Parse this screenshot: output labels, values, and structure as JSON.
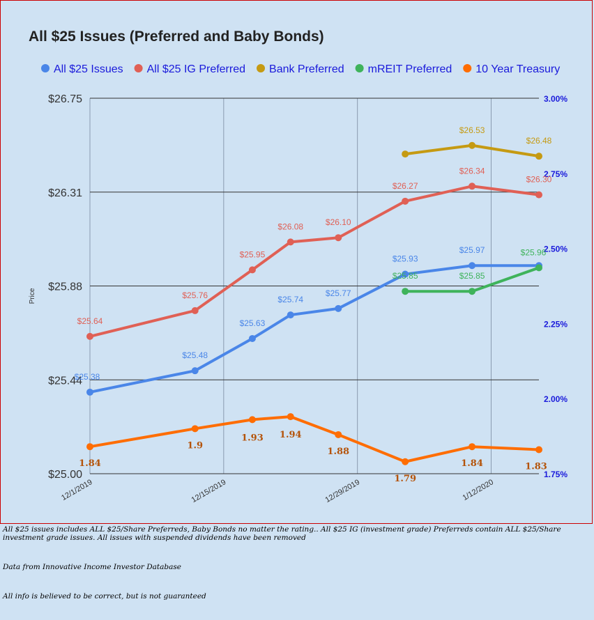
{
  "chart_data": {
    "type": "line",
    "title": "All $25 Issues (Preferred and Baby Bonds)",
    "ylabel": "Price",
    "ylim": [
      25.0,
      26.75
    ],
    "y_ticks": [
      "$25.00",
      "$25.44",
      "$25.88",
      "$26.31",
      "$26.75"
    ],
    "y2lim": [
      1.75,
      3.0
    ],
    "y2_ticks": [
      "1.75%",
      "2.00%",
      "2.25%",
      "2.50%",
      "2.75%",
      "3.00%"
    ],
    "x_ticks": [
      "12/1/2019",
      "12/15/2019",
      "12/29/2019",
      "1/12/2020"
    ],
    "x_tick_positions": [
      0,
      14,
      28,
      42
    ],
    "x_range": [
      0,
      47
    ],
    "legend_position": "top",
    "gridlines": true,
    "series": [
      {
        "name": "All $25 Issues",
        "color": "#4a86e8",
        "axis": "left",
        "x": [
          0,
          11,
          17,
          21,
          26,
          33,
          40,
          47
        ],
        "y": [
          25.38,
          25.48,
          25.63,
          25.74,
          25.77,
          25.93,
          25.97,
          25.97
        ],
        "labels": [
          "$25.38",
          "$25.48",
          "$25.63",
          "$25.74",
          "$25.77",
          "$25.93",
          "$25.97",
          ""
        ]
      },
      {
        "name": "All $25 IG Preferred",
        "color": "#e06055",
        "axis": "left",
        "x": [
          0,
          11,
          17,
          21,
          26,
          33,
          40,
          47
        ],
        "y": [
          25.64,
          25.76,
          25.95,
          26.08,
          26.1,
          26.27,
          26.34,
          26.3
        ],
        "labels": [
          "$25.64",
          "$25.76",
          "$25.95",
          "$26.08",
          "$26.10",
          "$26.27",
          "$26.34",
          "$26.30"
        ]
      },
      {
        "name": "Bank Preferred",
        "color": "#c59a12",
        "axis": "left",
        "x": [
          33,
          40,
          47
        ],
        "y": [
          26.49,
          26.53,
          26.48
        ],
        "labels": [
          "",
          "$26.53",
          "$26.48"
        ]
      },
      {
        "name": "mREIT Preferred",
        "color": "#3fb35b",
        "axis": "left",
        "x": [
          33,
          40,
          47
        ],
        "y": [
          25.85,
          25.85,
          25.96
        ],
        "labels": [
          "$25.85",
          "$25.85",
          "$25.96"
        ]
      },
      {
        "name": "10 Year Treasury",
        "color": "#ff6d01",
        "axis": "right",
        "x": [
          0,
          11,
          17,
          21,
          26,
          33,
          40,
          47
        ],
        "y": [
          1.84,
          1.9,
          1.93,
          1.94,
          1.88,
          1.79,
          1.84,
          1.83
        ],
        "labels": [
          "1.84",
          "1.9",
          "1.93",
          "1.94",
          "1.88",
          "1.79",
          "1.84",
          "1.83"
        ]
      }
    ]
  },
  "notes": [
    "All $25 issues includes ALL $25/Share Preferreds, Baby Bonds no matter the rating..  All $25 IG (investment grade) Preferreds contain ALL $25/Share investment grade issues.  All issues with suspended dividends have been removed",
    "Data from Innovative Income Investor Database",
    "All info is believed to be correct, but is not guaranteed"
  ],
  "colors": {
    "background": "#cfe2f3",
    "frame_border": "#cc0000",
    "right_axis_text": "#1a1adb",
    "treasury_label": "#b45309"
  }
}
